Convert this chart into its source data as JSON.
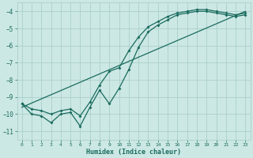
{
  "xlabel": "Humidex (Indice chaleur)",
  "background_color": "#cce8e4",
  "grid_color": "#aacfca",
  "line_color": "#1a6b5e",
  "xlim": [
    -0.5,
    23.5
  ],
  "ylim": [
    -11.5,
    -3.5
  ],
  "xticks": [
    0,
    1,
    2,
    3,
    4,
    5,
    6,
    7,
    8,
    9,
    10,
    11,
    12,
    13,
    14,
    15,
    16,
    17,
    18,
    19,
    20,
    21,
    22,
    23
  ],
  "yticks": [
    -11,
    -10,
    -9,
    -8,
    -7,
    -6,
    -5,
    -4
  ],
  "line1_x": [
    0,
    1,
    2,
    3,
    4,
    5,
    6,
    7,
    8,
    9,
    10,
    11,
    12,
    13,
    14,
    15,
    16,
    17,
    18,
    19,
    20,
    21,
    22,
    23
  ],
  "line1_y": [
    -9.4,
    -10.0,
    -10.1,
    -10.5,
    -10.0,
    -9.9,
    -10.7,
    -9.6,
    -8.6,
    -9.4,
    -8.5,
    -7.4,
    -6.1,
    -5.2,
    -4.8,
    -4.5,
    -4.2,
    -4.1,
    -4.0,
    -4.0,
    -4.1,
    -4.2,
    -4.3,
    -4.2
  ],
  "line2_x": [
    0,
    1,
    2,
    3,
    4,
    5,
    6,
    7,
    8,
    9,
    10,
    11,
    12,
    13,
    14,
    15,
    16,
    17,
    18,
    19,
    20,
    21,
    22,
    23
  ],
  "line2_y": [
    -9.4,
    -9.7,
    -9.8,
    -10.0,
    -9.8,
    -9.7,
    -10.1,
    -9.3,
    -8.3,
    -7.5,
    -7.3,
    -6.3,
    -5.5,
    -4.9,
    -4.6,
    -4.3,
    -4.1,
    -4.0,
    -3.9,
    -3.9,
    -4.0,
    -4.1,
    -4.2,
    -4.1
  ],
  "line3_x": [
    0,
    23
  ],
  "line3_y": [
    -9.6,
    -4.0
  ],
  "xlabel_fontsize": 6.0,
  "xtick_fontsize": 4.5,
  "ytick_fontsize": 5.5,
  "linewidth": 0.9,
  "markersize": 2.0
}
